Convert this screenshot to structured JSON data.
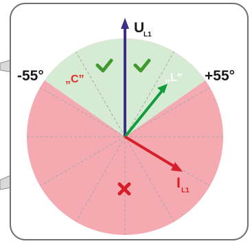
{
  "labels": {
    "minus_angle": "-55°",
    "plus_angle": "+55°",
    "capacitive": "„C”",
    "inductive": "„L”",
    "voltage": "U",
    "voltage_sub": "L1",
    "current": "I",
    "current_sub": "L1"
  },
  "zones": {
    "ok": {
      "angle_from": -55,
      "angle_to": 55,
      "icon": "check-icon",
      "color": "#d6ebd3"
    },
    "fault": {
      "icon": "cross-icon",
      "color": "#f4aab0"
    }
  },
  "colors": {
    "voltage_vector": "#3b2f86",
    "inductive_vector": "#129c3d",
    "current_vector": "#d61f2a",
    "check": "#3f9a2e",
    "cross": "#d81e2a"
  }
}
